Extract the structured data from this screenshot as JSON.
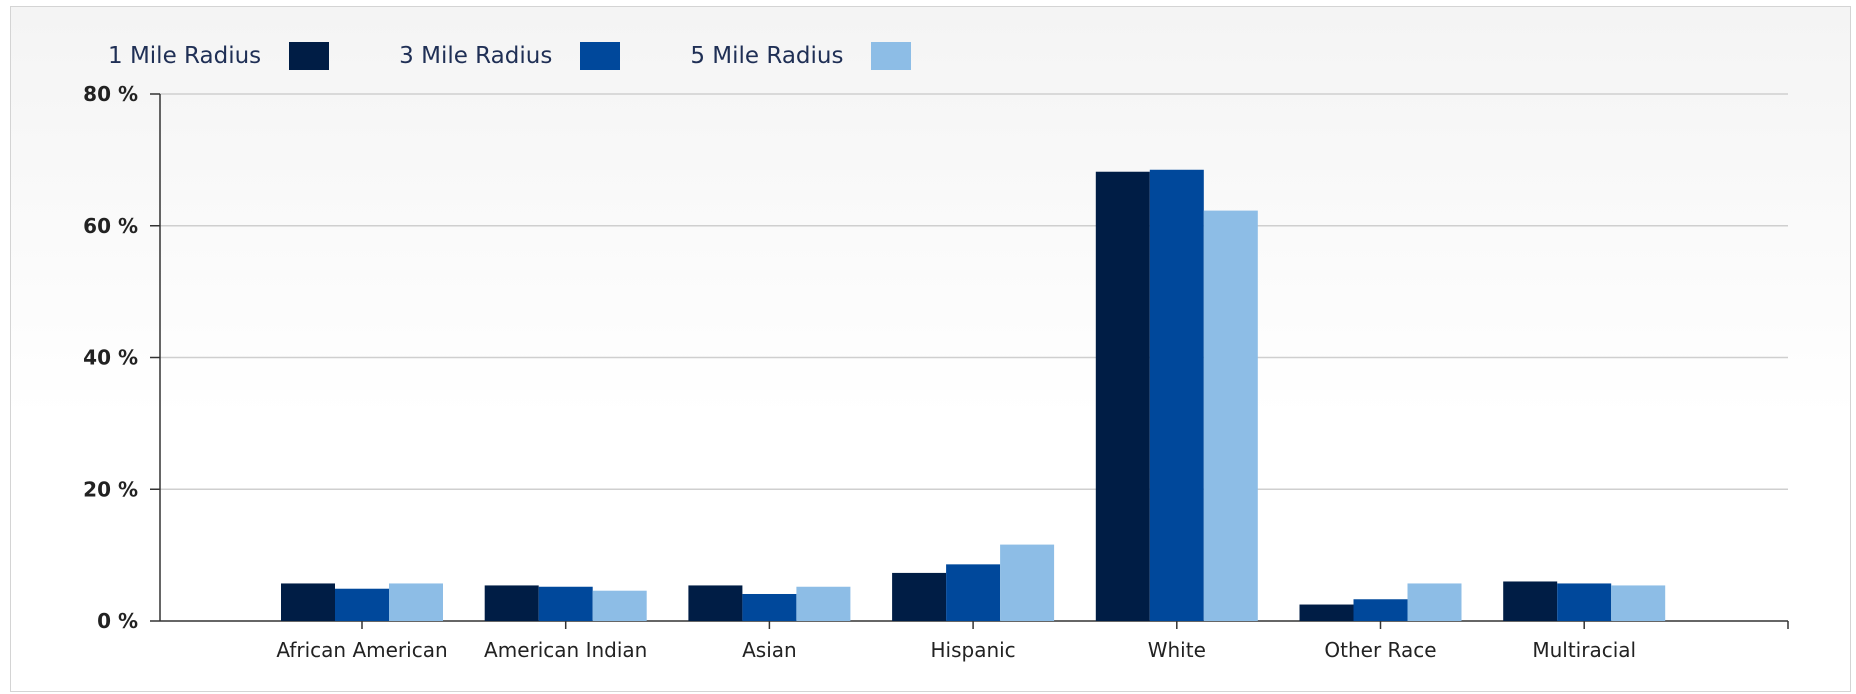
{
  "chart_data": {
    "type": "bar",
    "categories": [
      "African American",
      "American Indian",
      "Asian",
      "Hispanic",
      "White",
      "Other Race",
      "Multiracial"
    ],
    "series": [
      {
        "name": "1 Mile Radius",
        "color": "#001d45",
        "values": [
          5.7,
          5.4,
          5.4,
          7.3,
          68.2,
          2.5,
          6.0
        ]
      },
      {
        "name": "3 Mile Radius",
        "color": "#00489b",
        "values": [
          4.9,
          5.2,
          4.1,
          8.6,
          68.5,
          3.3,
          5.7
        ]
      },
      {
        "name": "5 Mile Radius",
        "color": "#8dbde6",
        "values": [
          5.7,
          4.6,
          5.2,
          11.6,
          62.3,
          5.7,
          5.4
        ]
      }
    ],
    "y_ticks": [
      "0 %",
      "20 %",
      "40 %",
      "60 %",
      "80 %"
    ],
    "ylim": [
      0,
      80
    ],
    "grid": true,
    "legend_position": "top-left"
  }
}
